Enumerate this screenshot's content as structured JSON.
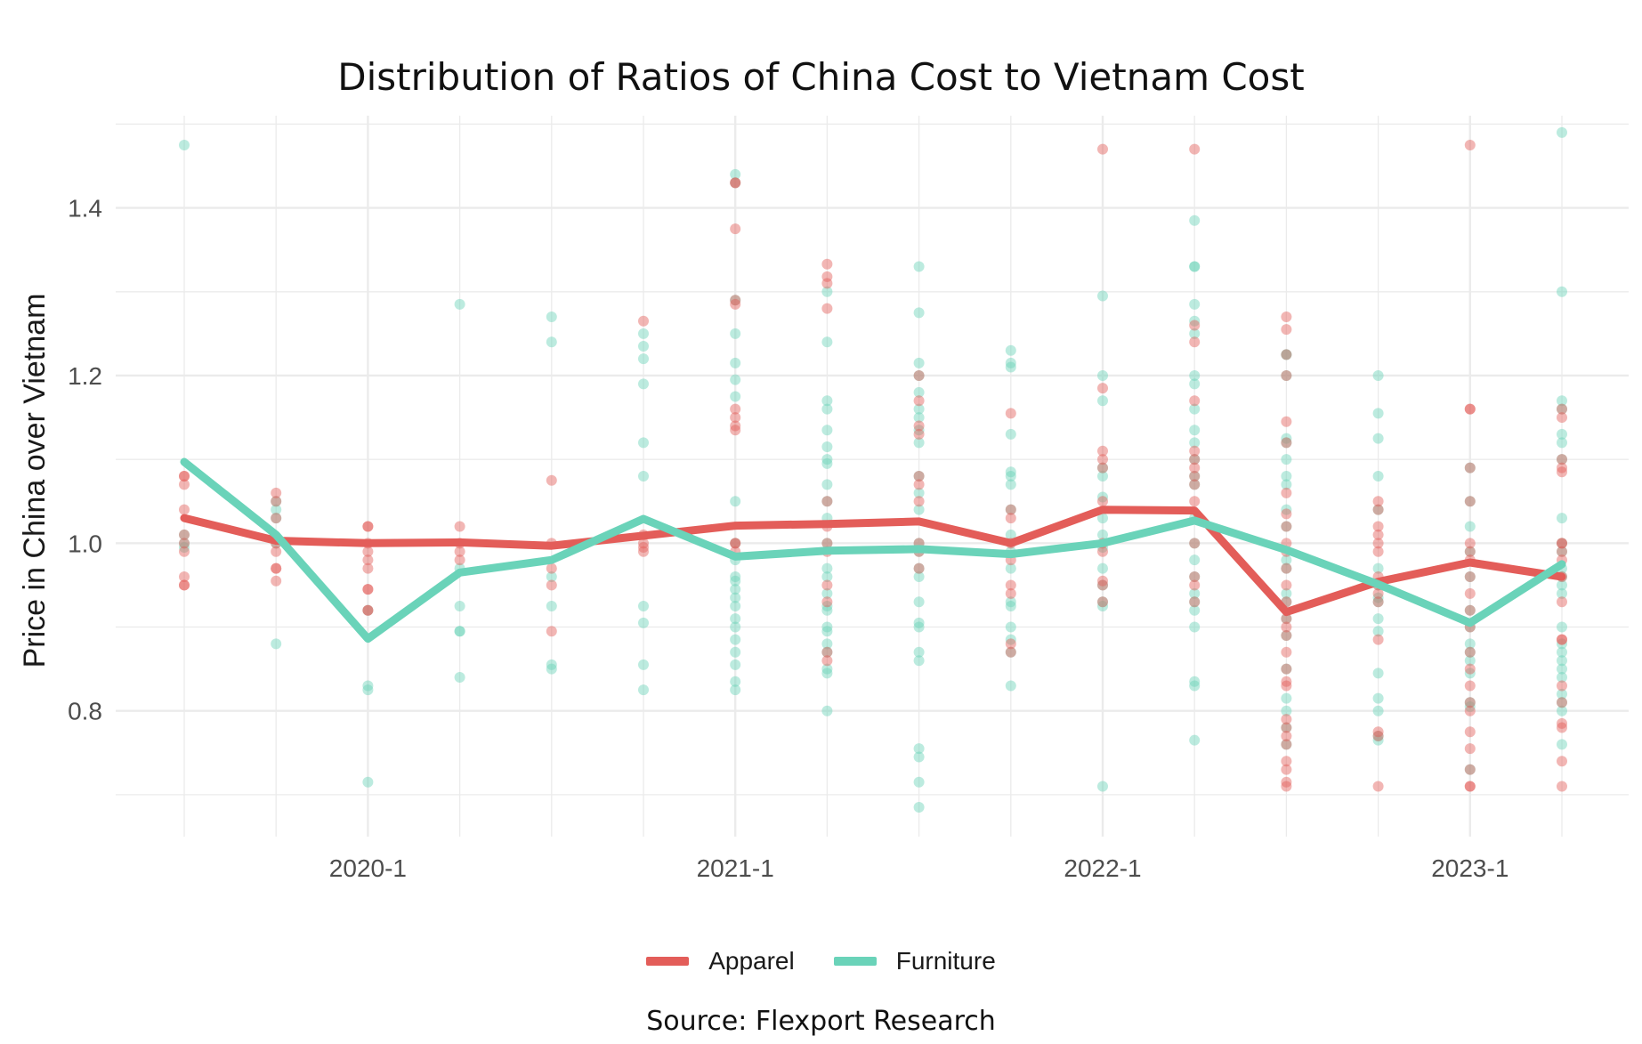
{
  "colors": {
    "apparel": "#e35d59",
    "furniture": "#6ad3b9",
    "grid": "#ebebeb",
    "background": "#ffffff"
  },
  "chart_data": {
    "type": "line",
    "title": "Distribution of Ratios of China Cost to Vietnam Cost",
    "xlabel": "",
    "ylabel": "Price in China over Vietnam",
    "ylim": [
      0.65,
      1.51
    ],
    "yticks": [
      "0.8",
      "1.0",
      "1.2",
      "1.4"
    ],
    "x_quarters": [
      "2019-3",
      "2019-4",
      "2020-1",
      "2020-2",
      "2020-3",
      "2020-4",
      "2021-1",
      "2021-2",
      "2021-3",
      "2021-4",
      "2022-1",
      "2022-2",
      "2022-3",
      "2022-4",
      "2023-1",
      "2023-2"
    ],
    "xtick_labels": [
      "2020-1",
      "2021-1",
      "2022-1",
      "2023-1"
    ],
    "legend_position": "bottom",
    "grid": true,
    "series": [
      {
        "name": "Apparel",
        "color": "#e35d59",
        "values": [
          1.03,
          1.003,
          1.0,
          1.001,
          0.997,
          1.009,
          1.021,
          1.023,
          1.026,
          1.0,
          1.04,
          1.039,
          0.918,
          0.954,
          0.977,
          0.96
        ],
        "points": [
          [
            1.08,
            1.08,
            1.07,
            1.04,
            1.0,
            0.99,
            0.96,
            0.95,
            0.95,
            1.01
          ],
          [
            1.06,
            1.05,
            1.03,
            1.0,
            0.99,
            0.97,
            0.97,
            0.955
          ],
          [
            1.02,
            1.02,
            1.0,
            0.99,
            0.98,
            0.97,
            0.945,
            0.945,
            0.92,
            0.92
          ],
          [
            1.02,
            1.0,
            0.99,
            0.98
          ],
          [
            1.075,
            1.0,
            0.97,
            0.95,
            0.895
          ],
          [
            1.265,
            1.0,
            1.01,
            0.99,
            0.995
          ],
          [
            1.43,
            1.43,
            1.375,
            1.29,
            1.285,
            1.16,
            1.15,
            1.14,
            1.135,
            1.0,
            1.0,
            0.99
          ],
          [
            1.333,
            1.318,
            1.31,
            1.28,
            1.05,
            1.02,
            1.0,
            0.99,
            0.95,
            0.93,
            0.87,
            0.86
          ],
          [
            1.2,
            1.17,
            1.14,
            1.13,
            1.08,
            1.07,
            1.05,
            1.0,
            0.99,
            0.97
          ],
          [
            1.155,
            1.04,
            1.03,
            1.0,
            0.98,
            0.95,
            0.94,
            0.88,
            0.87
          ],
          [
            1.47,
            1.185,
            1.11,
            1.1,
            1.09,
            1.05,
            1.0,
            0.99,
            0.955,
            0.95,
            0.93
          ],
          [
            1.47,
            1.26,
            1.24,
            1.17,
            1.11,
            1.1,
            1.09,
            1.08,
            1.07,
            1.05,
            1.0,
            0.96,
            0.95,
            0.93
          ],
          [
            1.27,
            1.255,
            1.225,
            1.2,
            1.145,
            1.12,
            1.06,
            1.035,
            1.02,
            1.0,
            0.99,
            0.97,
            0.95,
            0.93,
            0.91,
            0.9,
            0.89,
            0.87,
            0.85,
            0.835,
            0.83,
            0.79,
            0.78,
            0.77,
            0.76,
            0.74,
            0.73,
            0.715,
            0.71
          ],
          [
            1.05,
            1.04,
            1.02,
            1.01,
            1.0,
            0.99,
            0.96,
            0.95,
            0.94,
            0.93,
            0.885,
            0.775,
            0.77,
            0.71
          ],
          [
            1.475,
            1.16,
            1.16,
            1.09,
            1.05,
            1.0,
            0.99,
            0.98,
            0.96,
            0.94,
            0.92,
            0.9,
            0.87,
            0.85,
            0.83,
            0.81,
            0.8,
            0.775,
            0.755,
            0.73,
            0.71,
            0.71
          ],
          [
            1.16,
            1.15,
            1.1,
            1.09,
            1.085,
            1.0,
            1.0,
            0.99,
            0.98,
            0.96,
            0.93,
            0.885,
            0.885,
            0.83,
            0.81,
            0.785,
            0.78,
            0.74,
            0.71
          ]
        ]
      },
      {
        "name": "Furniture",
        "color": "#6ad3b9",
        "values": [
          1.097,
          1.01,
          0.886,
          0.965,
          0.98,
          1.029,
          0.984,
          0.991,
          0.993,
          0.987,
          1.0,
          1.027,
          0.992,
          0.951,
          0.905,
          0.975
        ],
        "points": [
          [
            1.475,
            1.01,
            1.0,
            0.995
          ],
          [
            1.05,
            1.04,
            1.03,
            1.0,
            0.88
          ],
          [
            0.92,
            0.83,
            0.825,
            0.715
          ],
          [
            1.285,
            0.97,
            0.925,
            0.895,
            0.895,
            0.84
          ],
          [
            1.27,
            1.24,
            0.96,
            0.925,
            0.855,
            0.85
          ],
          [
            1.25,
            1.235,
            1.22,
            1.19,
            1.12,
            1.08,
            0.925,
            0.905,
            0.855,
            0.825
          ],
          [
            1.44,
            1.43,
            1.29,
            1.25,
            1.215,
            1.195,
            1.175,
            1.05,
            1.0,
            0.98,
            0.96,
            0.955,
            0.945,
            0.935,
            0.925,
            0.91,
            0.9,
            0.885,
            0.87,
            0.855,
            0.835,
            0.825
          ],
          [
            1.3,
            1.24,
            1.17,
            1.16,
            1.135,
            1.115,
            1.1,
            1.095,
            1.07,
            1.05,
            1.03,
            1.0,
            0.97,
            0.96,
            0.94,
            0.925,
            0.92,
            0.9,
            0.895,
            0.88,
            0.87,
            0.85,
            0.845,
            0.8
          ],
          [
            1.33,
            1.275,
            1.215,
            1.2,
            1.18,
            1.16,
            1.15,
            1.135,
            1.12,
            1.08,
            1.06,
            1.04,
            1.0,
            0.99,
            0.97,
            0.96,
            0.93,
            0.905,
            0.9,
            0.87,
            0.86,
            0.755,
            0.745,
            0.715,
            0.685
          ],
          [
            1.23,
            1.215,
            1.21,
            1.13,
            1.085,
            1.08,
            1.07,
            1.04,
            1.01,
            0.99,
            0.97,
            0.93,
            0.925,
            0.9,
            0.885,
            0.87,
            0.83
          ],
          [
            1.295,
            1.2,
            1.17,
            1.09,
            1.08,
            1.055,
            1.03,
            1.01,
            0.995,
            0.97,
            0.95,
            0.93,
            0.925,
            0.71
          ],
          [
            1.385,
            1.33,
            1.33,
            1.285,
            1.265,
            1.25,
            1.2,
            1.19,
            1.16,
            1.135,
            1.12,
            1.1,
            1.08,
            1.07,
            1.03,
            1.0,
            0.98,
            0.96,
            0.94,
            0.93,
            0.92,
            0.9,
            0.835,
            0.83,
            0.765
          ],
          [
            1.225,
            1.225,
            1.2,
            1.125,
            1.12,
            1.1,
            1.08,
            1.07,
            1.04,
            1.02,
            0.98,
            0.97,
            0.94,
            0.93,
            0.91,
            0.89,
            0.85,
            0.815,
            0.8,
            0.78,
            0.76
          ],
          [
            1.2,
            1.155,
            1.125,
            1.08,
            1.04,
            0.97,
            0.95,
            0.935,
            0.93,
            0.91,
            0.895,
            0.845,
            0.815,
            0.8,
            0.77,
            0.765
          ],
          [
            1.09,
            1.05,
            1.02,
            0.99,
            0.96,
            0.92,
            0.9,
            0.88,
            0.87,
            0.86,
            0.845,
            0.81,
            0.805,
            0.73
          ],
          [
            1.49,
            1.3,
            1.17,
            1.16,
            1.13,
            1.12,
            1.1,
            1.03,
            1.0,
            0.99,
            0.97,
            0.96,
            0.95,
            0.94,
            0.9,
            0.88,
            0.87,
            0.86,
            0.85,
            0.84,
            0.82,
            0.81,
            0.8,
            0.76
          ]
        ]
      }
    ],
    "source": "Source: Flexport Research"
  }
}
